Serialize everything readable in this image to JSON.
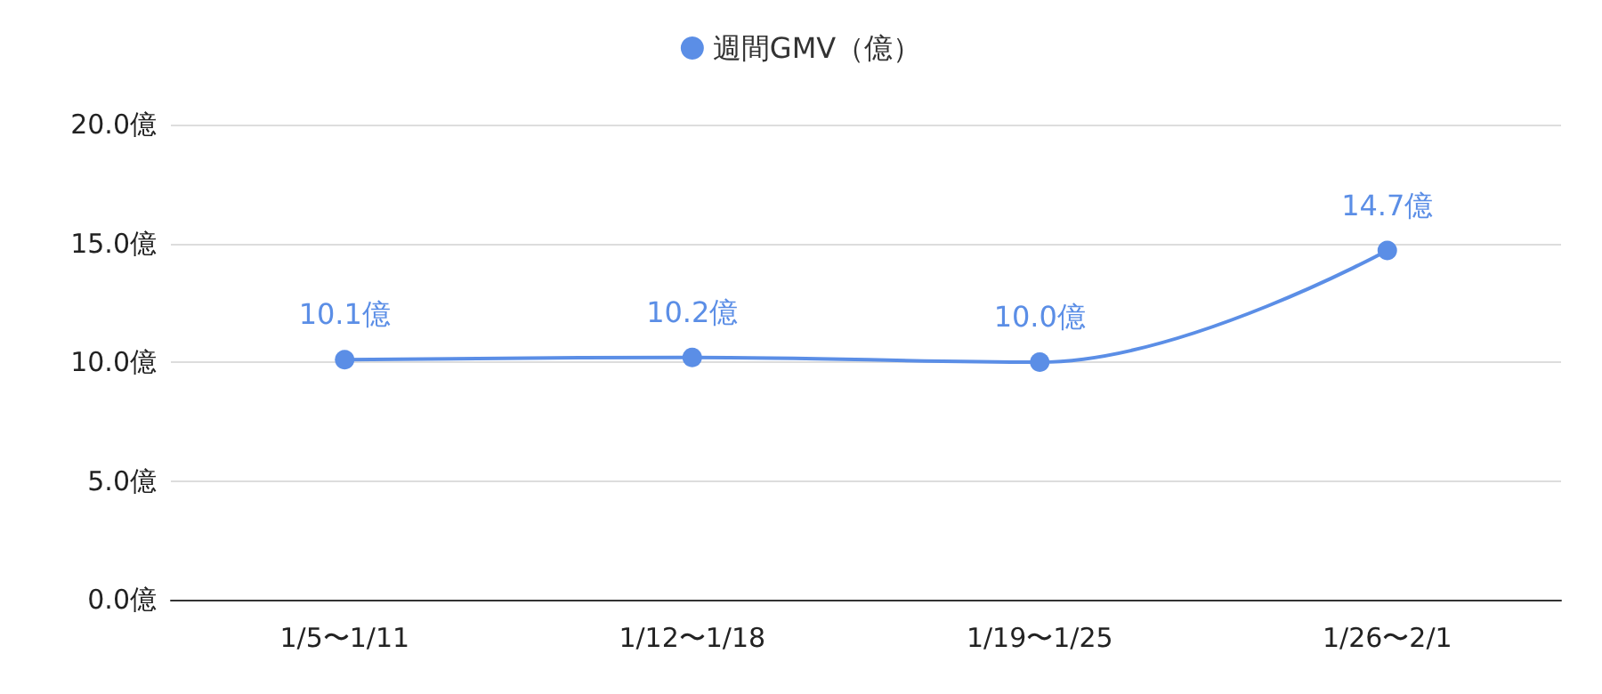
{
  "chart_data": {
    "type": "line",
    "categories": [
      "1/5〜1/11",
      "1/12〜1/18",
      "1/19〜1/25",
      "1/26〜2/1"
    ],
    "series": [
      {
        "name": "週間GMV（億）",
        "color": "#5b8ee6",
        "values": [
          10.1,
          10.2,
          10.0,
          14.7
        ],
        "value_labels": [
          "10.1億",
          "10.2億",
          "10.0億",
          "14.7億"
        ]
      }
    ],
    "ylim": [
      0,
      20
    ],
    "yticks": [
      {
        "value": 0,
        "label": "0.0億"
      },
      {
        "value": 5,
        "label": "5.0億"
      },
      {
        "value": 10,
        "label": "10.0億"
      },
      {
        "value": 15,
        "label": "15.0億"
      },
      {
        "value": 20,
        "label": "20.0億"
      }
    ],
    "grid": "y",
    "legend": "top",
    "marker": "circle",
    "line_style": "solid"
  }
}
